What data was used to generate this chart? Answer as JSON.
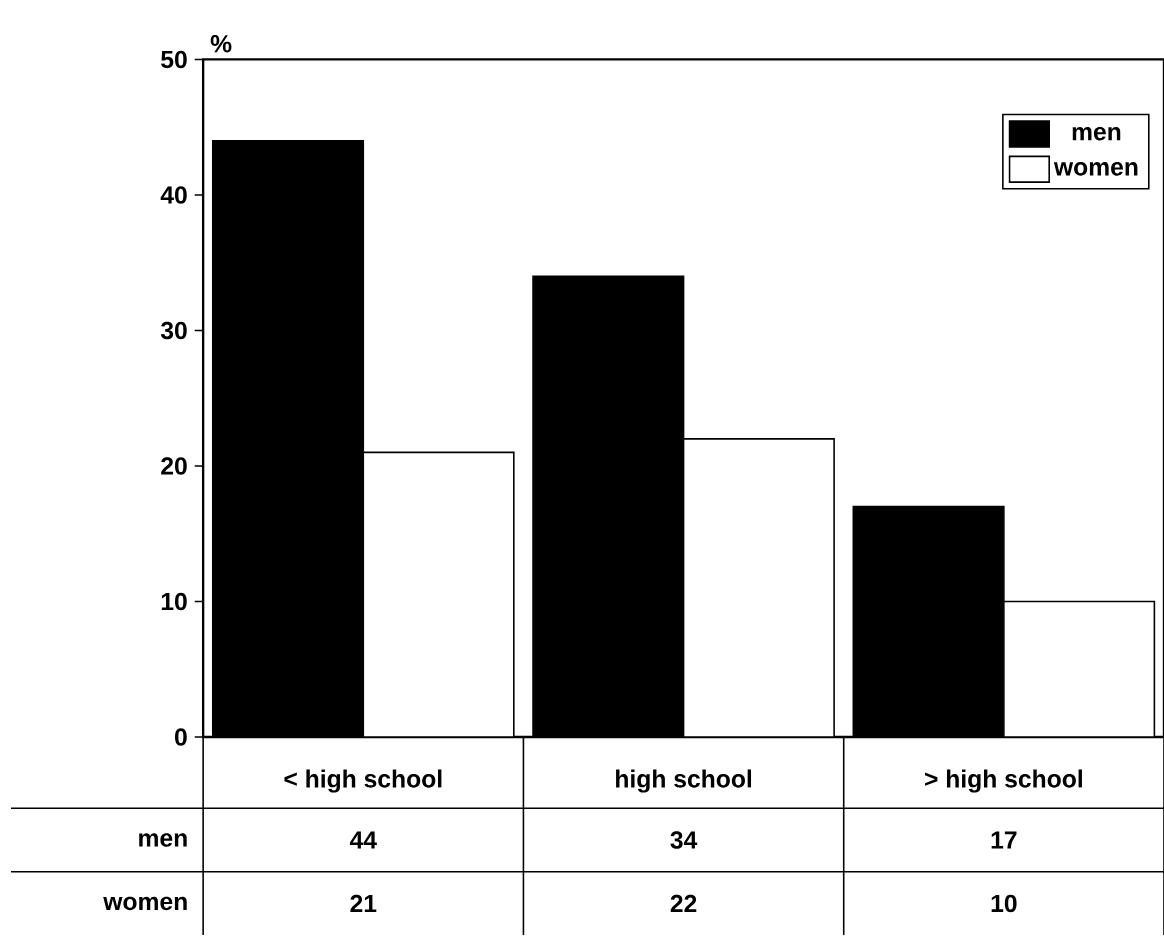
{
  "chart_data": {
    "type": "bar",
    "ylabel": "%",
    "categories": [
      "< high school",
      "high school",
      "> high school"
    ],
    "series": [
      {
        "name": "men",
        "color": "#000000",
        "values": [
          44,
          34,
          17
        ]
      },
      {
        "name": "women",
        "color": "#ffffff",
        "values": [
          21,
          22,
          10
        ]
      }
    ],
    "ylim": [
      0,
      50
    ],
    "yticks": [
      0,
      10,
      20,
      30,
      40,
      50
    ],
    "legend": "top right",
    "data_labels": true
  }
}
